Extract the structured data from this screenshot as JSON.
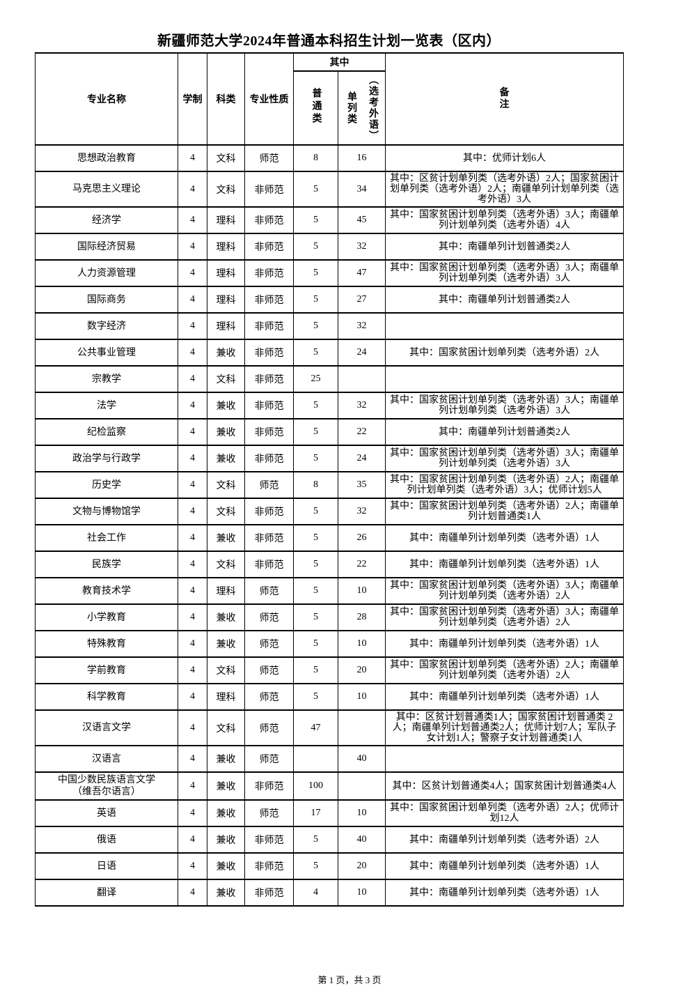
{
  "page": {
    "title": "新疆师范大学2024年普通本科招生计划一览表（区内）",
    "footer": "第 1 页，共 3 页"
  },
  "colors": {
    "text": "#000000",
    "background": "#ffffff",
    "border": "#000000"
  },
  "table": {
    "headers": {
      "major": "专业名称",
      "duration": "学制",
      "category": "科类",
      "nature": "专业性质",
      "among": "其中",
      "regular": "普通类",
      "separate_left": "单列类",
      "separate_right": "（选考外语）",
      "remark": "备\n注"
    },
    "rows": [
      {
        "major": "思想政治教育",
        "duration": "4",
        "category": "文科",
        "nature": "师范",
        "regular": "8",
        "separate": "16",
        "remark": "其中：优师计划6人"
      },
      {
        "major": "马克思主义理论",
        "duration": "4",
        "category": "文科",
        "nature": "非师范",
        "regular": "5",
        "separate": "34",
        "remark": "其中：区贫计划单列类（选考外语）2人；国家贫困计划单列类（选考外语）2人；南疆单列计划单列类（选考外语）3人"
      },
      {
        "major": "经济学",
        "duration": "4",
        "category": "理科",
        "nature": "非师范",
        "regular": "5",
        "separate": "45",
        "remark": "其中：国家贫困计划单列类（选考外语）3人；南疆单列计划单列类（选考外语）4人"
      },
      {
        "major": "国际经济贸易",
        "duration": "4",
        "category": "理科",
        "nature": "非师范",
        "regular": "5",
        "separate": "32",
        "remark": "其中：南疆单列计划普通类2人"
      },
      {
        "major": "人力资源管理",
        "duration": "4",
        "category": "理科",
        "nature": "非师范",
        "regular": "5",
        "separate": "47",
        "remark": "其中：国家贫困计划单列类（选考外语）3人；南疆单列计划单列类（选考外语）3人"
      },
      {
        "major": "国际商务",
        "duration": "4",
        "category": "理科",
        "nature": "非师范",
        "regular": "5",
        "separate": "27",
        "remark": "其中：南疆单列计划普通类2人"
      },
      {
        "major": "数字经济",
        "duration": "4",
        "category": "理科",
        "nature": "非师范",
        "regular": "5",
        "separate": "32",
        "remark": ""
      },
      {
        "major": "公共事业管理",
        "duration": "4",
        "category": "兼收",
        "nature": "非师范",
        "regular": "5",
        "separate": "24",
        "remark": "其中：国家贫困计划单列类（选考外语）2人"
      },
      {
        "major": "宗教学",
        "duration": "4",
        "category": "文科",
        "nature": "非师范",
        "regular": "25",
        "separate": "",
        "remark": ""
      },
      {
        "major": "法学",
        "duration": "4",
        "category": "兼收",
        "nature": "非师范",
        "regular": "5",
        "separate": "32",
        "remark": "其中：国家贫困计划单列类（选考外语）3人；南疆单列计划单列类（选考外语）3人"
      },
      {
        "major": "纪检监察",
        "duration": "4",
        "category": "兼收",
        "nature": "非师范",
        "regular": "5",
        "separate": "22",
        "remark": "其中：南疆单列计划普通类2人"
      },
      {
        "major": "政治学与行政学",
        "duration": "4",
        "category": "兼收",
        "nature": "非师范",
        "regular": "5",
        "separate": "24",
        "remark": "其中：国家贫困计划单列类（选考外语）3人；南疆单列计划单列类（选考外语）3人"
      },
      {
        "major": "历史学",
        "duration": "4",
        "category": "文科",
        "nature": "师范",
        "regular": "8",
        "separate": "35",
        "remark": "其中：国家贫困计划单列类（选考外语）2人；南疆单列计划单列类（选考外语）3人；优师计划5人"
      },
      {
        "major": "文物与博物馆学",
        "duration": "4",
        "category": "文科",
        "nature": "非师范",
        "regular": "5",
        "separate": "32",
        "remark": "其中：国家贫困计划单列类（选考外语）2人；南疆单列计划普通类1人"
      },
      {
        "major": "社会工作",
        "duration": "4",
        "category": "兼收",
        "nature": "非师范",
        "regular": "5",
        "separate": "26",
        "remark": "其中：南疆单列计划单列类（选考外语）1人"
      },
      {
        "major": "民族学",
        "duration": "4",
        "category": "文科",
        "nature": "非师范",
        "regular": "5",
        "separate": "22",
        "remark": "其中：南疆单列计划单列类（选考外语）1人"
      },
      {
        "major": "教育技术学",
        "duration": "4",
        "category": "理科",
        "nature": "师范",
        "regular": "5",
        "separate": "10",
        "remark": "其中：国家贫困计划单列类（选考外语）3人；南疆单列计划单列类（选考外语）2人"
      },
      {
        "major": "小学教育",
        "duration": "4",
        "category": "兼收",
        "nature": "师范",
        "regular": "5",
        "separate": "28",
        "remark": "其中：国家贫困计划单列类（选考外语）3人；南疆单列计划单列类（选考外语）2人"
      },
      {
        "major": "特殊教育",
        "duration": "4",
        "category": "兼收",
        "nature": "师范",
        "regular": "5",
        "separate": "10",
        "remark": "其中：南疆单列计划单列类（选考外语）1人"
      },
      {
        "major": "学前教育",
        "duration": "4",
        "category": "文科",
        "nature": "师范",
        "regular": "5",
        "separate": "20",
        "remark": "其中：国家贫困计划单列类（选考外语）2人；南疆单列计划单列类（选考外语）2人"
      },
      {
        "major": "科学教育",
        "duration": "4",
        "category": "理科",
        "nature": "师范",
        "regular": "5",
        "separate": "10",
        "remark": "其中：南疆单列计划单列类（选考外语）1人"
      },
      {
        "major": "汉语言文学",
        "duration": "4",
        "category": "文科",
        "nature": "师范",
        "regular": "47",
        "separate": "",
        "remark": "其中：区贫计划普通类1人；国家贫困计划普通类 2人；南疆单列计划普通类2人；优师计划7人；军队子女计划1人；警察子女计划普通类1人"
      },
      {
        "major": "汉语言",
        "duration": "4",
        "category": "兼收",
        "nature": "师范",
        "regular": "",
        "separate": "40",
        "remark": ""
      },
      {
        "major": "中国少数民族语言文学\n（维吾尔语言）",
        "duration": "4",
        "category": "兼收",
        "nature": "非师范",
        "regular": "100",
        "separate": "",
        "remark": "其中：区贫计划普通类4人；国家贫困计划普通类4人"
      },
      {
        "major": "英语",
        "duration": "4",
        "category": "兼收",
        "nature": "师范",
        "regular": "17",
        "separate": "10",
        "remark": "其中：国家贫困计划单列类（选考外语）2人；优师计划12人"
      },
      {
        "major": "俄语",
        "duration": "4",
        "category": "兼收",
        "nature": "非师范",
        "regular": "5",
        "separate": "40",
        "remark": "其中：南疆单列计划单列类（选考外语）2人"
      },
      {
        "major": "日语",
        "duration": "4",
        "category": "兼收",
        "nature": "非师范",
        "regular": "5",
        "separate": "20",
        "remark": "其中：南疆单列计划单列类（选考外语）1人"
      },
      {
        "major": "翻译",
        "duration": "4",
        "category": "兼收",
        "nature": "非师范",
        "regular": "4",
        "separate": "10",
        "remark": "其中：南疆单列计划单列类（选考外语）1人"
      }
    ]
  }
}
